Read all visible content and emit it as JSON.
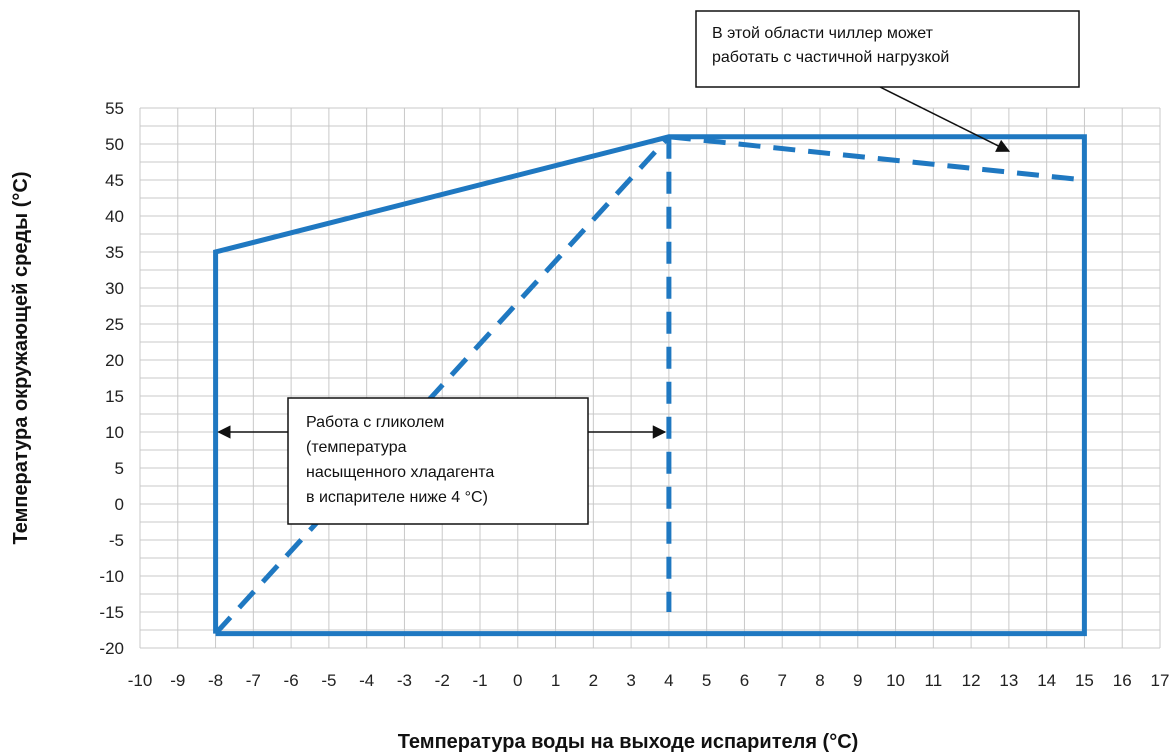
{
  "chart_data": {
    "type": "line",
    "title": "",
    "xlabel": "Температура воды на выходе испарителя (°C)",
    "ylabel": "Температура окружающей среды (°C)",
    "xlim": [
      -10,
      17
    ],
    "ylim": [
      -20,
      55
    ],
    "x_ticks": [
      -10,
      -9,
      -8,
      -7,
      -6,
      -5,
      -4,
      -3,
      -2,
      -1,
      0,
      1,
      2,
      3,
      4,
      5,
      6,
      7,
      8,
      9,
      10,
      11,
      12,
      13,
      14,
      15,
      16,
      17
    ],
    "y_ticks": [
      -20,
      -15,
      -10,
      -5,
      0,
      5,
      10,
      15,
      20,
      25,
      30,
      35,
      40,
      45,
      50,
      55
    ],
    "grid": true,
    "legend": "none",
    "series": [
      {
        "style": "solid",
        "color": "#1f78c1",
        "points": [
          [
            -8,
            -18
          ],
          [
            -8,
            35
          ],
          [
            4,
            51
          ],
          [
            15,
            51
          ],
          [
            15,
            -18
          ],
          [
            -8,
            -18
          ]
        ]
      },
      {
        "style": "dashed",
        "color": "#1f78c1",
        "points": [
          [
            -8,
            -18
          ],
          [
            4,
            51
          ]
        ]
      },
      {
        "style": "dashed",
        "color": "#1f78c1",
        "points": [
          [
            4,
            51
          ],
          [
            4,
            -15
          ]
        ]
      },
      {
        "style": "dashed",
        "color": "#1f78c1",
        "points": [
          [
            4,
            51
          ],
          [
            15,
            45
          ]
        ]
      }
    ],
    "annotations": [
      {
        "id": "partial-load",
        "lines": [
          "В этой области чиллер может",
          "работать с частичной нагрузкой"
        ],
        "arrow_to": [
          13,
          49
        ]
      },
      {
        "id": "glycol",
        "lines": [
          "Работа с гликолем",
          "(температура",
          "насыщенного хладагента",
          "в испарителе ниже 4 °C)"
        ],
        "arrows_to": [
          [
            -8,
            10
          ],
          [
            4,
            10
          ]
        ]
      }
    ]
  }
}
